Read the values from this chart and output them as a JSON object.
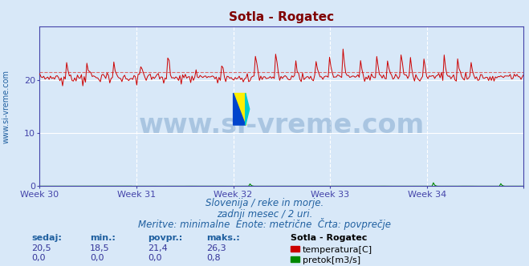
{
  "title": "Sotla - Rogatec",
  "title_color": "#800000",
  "title_fontsize": 11,
  "bg_color": "#d8e8f8",
  "grid_color": "#ffffff",
  "axis_color": "#4444aa",
  "tick_color": "#4444aa",
  "xlim": [
    0,
    360
  ],
  "ylim": [
    0,
    30
  ],
  "yticks": [
    0,
    10,
    20
  ],
  "week_labels": [
    "Week 30",
    "Week 31",
    "Week 32",
    "Week 33",
    "Week 34"
  ],
  "week_x": [
    0,
    72,
    144,
    216,
    288,
    360
  ],
  "temp_color": "#cc0000",
  "temp_avg": 21.4,
  "temp_avg_color": "#dd6666",
  "flow_color": "#008800",
  "watermark_text": "www.si-vreme.com",
  "watermark_color": "#2060a0",
  "watermark_alpha": 0.25,
  "watermark_fontsize": 24,
  "rotated_label": "www.si-vreme.com",
  "rotated_label_color": "#2060a0",
  "rotated_label_fontsize": 7,
  "subtitle_lines": [
    "Slovenija / reke in morje.",
    "zadnji mesec / 2 uri.",
    "Meritve: minimalne  Enote: metrične  Črta: povprečje"
  ],
  "subtitle_color": "#2060a0",
  "subtitle_fontsize": 8.5,
  "table_headers": [
    "sedaj:",
    "min.:",
    "povpr.:",
    "maks.:"
  ],
  "table_header_color": "#2060a0",
  "table_row1_values": [
    "20,5",
    "18,5",
    "21,4",
    "26,3"
  ],
  "table_row2_values": [
    "0,0",
    "0,0",
    "0,0",
    "0,8"
  ],
  "table_label": "Sotla - Rogatec",
  "legend_items": [
    {
      "label": "temperatura[C]",
      "color": "#cc0000"
    },
    {
      "label": "pretok[m3/s]",
      "color": "#008800"
    }
  ],
  "n_points": 360
}
